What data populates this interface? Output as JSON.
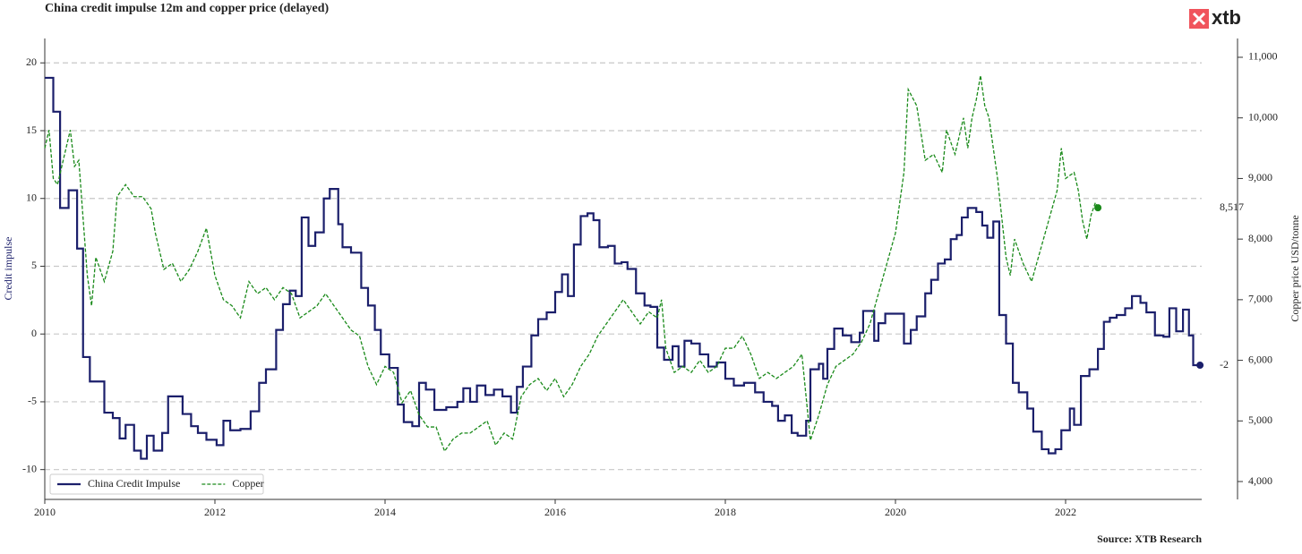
{
  "chart_data": {
    "type": "line",
    "title": "China credit impulse 12m and copper price (delayed)",
    "source": "Source: XTB Research",
    "logo": "xtb",
    "y_label": "Credit impulse",
    "y2_label": "Copper price USD/tonne",
    "xlim": [
      2010,
      2023.6
    ],
    "xticks": [
      2010,
      2012,
      2014,
      2016,
      2018,
      2020,
      2022
    ],
    "ylim": [
      -12.2,
      21.8
    ],
    "yticks": [
      -10,
      -5,
      0,
      5,
      10,
      15,
      20
    ],
    "y2lim": [
      3705,
      11310
    ],
    "y2ticks": [
      {
        "value": 4000,
        "label": "4,000"
      },
      {
        "value": 5000,
        "label": "5,000"
      },
      {
        "value": 6000,
        "label": "6,000"
      },
      {
        "value": 7000,
        "label": "7,000"
      },
      {
        "value": 8000,
        "label": "8,000"
      },
      {
        "value": 9000,
        "label": "9,000"
      },
      {
        "value": 10000,
        "label": "10,000"
      },
      {
        "value": 11000,
        "label": "11,000"
      }
    ],
    "grid": true,
    "legend": "lower left",
    "series": [
      {
        "name": "China Credit Impulse",
        "color": "#1b1f6b",
        "step": true,
        "dashed": false,
        "axis": "y",
        "last_label": "-2",
        "x": [
          2010.0,
          2010.1,
          2010.18,
          2010.28,
          2010.38,
          2010.45,
          2010.53,
          2010.7,
          2010.8,
          2010.88,
          2010.95,
          2011.05,
          2011.13,
          2011.2,
          2011.28,
          2011.38,
          2011.45,
          2011.62,
          2011.72,
          2011.8,
          2011.9,
          2012.02,
          2012.1,
          2012.18,
          2012.3,
          2012.42,
          2012.52,
          2012.6,
          2012.72,
          2012.8,
          2012.88,
          2012.95,
          2013.02,
          2013.1,
          2013.18,
          2013.28,
          2013.35,
          2013.45,
          2013.5,
          2013.6,
          2013.72,
          2013.8,
          2013.88,
          2013.95,
          2014.05,
          2014.15,
          2014.22,
          2014.32,
          2014.4,
          2014.48,
          2014.58,
          2014.72,
          2014.85,
          2014.92,
          2015.0,
          2015.08,
          2015.18,
          2015.28,
          2015.38,
          2015.48,
          2015.55,
          2015.62,
          2015.72,
          2015.8,
          2015.9,
          2016.0,
          2016.08,
          2016.15,
          2016.22,
          2016.3,
          2016.38,
          2016.45,
          2016.52,
          2016.62,
          2016.7,
          2016.78,
          2016.85,
          2016.95,
          2017.05,
          2017.12,
          2017.2,
          2017.28,
          2017.38,
          2017.45,
          2017.52,
          2017.6,
          2017.7,
          2017.8,
          2017.9,
          2018.0,
          2018.1,
          2018.22,
          2018.35,
          2018.45,
          2018.55,
          2018.62,
          2018.7,
          2018.78,
          2018.85,
          2018.95,
          2019.0,
          2019.1,
          2019.15,
          2019.2,
          2019.28,
          2019.38,
          2019.48,
          2019.58,
          2019.62,
          2019.75,
          2019.8,
          2019.88,
          2020.0,
          2020.1,
          2020.18,
          2020.25,
          2020.35,
          2020.42,
          2020.5,
          2020.58,
          2020.65,
          2020.72,
          2020.78,
          2020.85,
          2020.95,
          2021.02,
          2021.08,
          2021.15,
          2021.22,
          2021.3,
          2021.38,
          2021.45,
          2021.55,
          2021.62,
          2021.72,
          2021.8,
          2021.88,
          2021.95,
          2022.05,
          2022.1,
          2022.18,
          2022.28,
          2022.38,
          2022.45,
          2022.52,
          2022.6,
          2022.7,
          2022.78,
          2022.88,
          2022.95,
          2023.05,
          2023.15,
          2023.22,
          2023.3,
          2023.38,
          2023.45,
          2023.5,
          2023.58
        ],
        "values": [
          18.9,
          16.4,
          9.3,
          10.6,
          6.3,
          -1.7,
          -3.5,
          -5.8,
          -6.2,
          -7.7,
          -6.7,
          -8.6,
          -9.2,
          -7.5,
          -8.6,
          -7.3,
          -4.6,
          -5.9,
          -6.8,
          -7.3,
          -7.8,
          -8.2,
          -6.4,
          -7.1,
          -7.0,
          -5.7,
          -3.6,
          -2.6,
          0.3,
          2.2,
          3.2,
          2.8,
          8.6,
          6.5,
          7.5,
          10.0,
          10.7,
          8.1,
          6.4,
          6.0,
          3.4,
          2.1,
          0.3,
          -1.5,
          -2.5,
          -5.2,
          -6.5,
          -6.8,
          -3.6,
          -4.1,
          -5.6,
          -5.4,
          -5.0,
          -4.0,
          -5.0,
          -3.8,
          -4.5,
          -4.1,
          -4.6,
          -5.8,
          -3.9,
          -2.4,
          -0.1,
          1.1,
          1.6,
          3.1,
          4.4,
          2.8,
          6.6,
          8.7,
          8.9,
          8.4,
          6.4,
          6.5,
          5.2,
          5.3,
          4.8,
          3.0,
          2.1,
          2.0,
          -1.0,
          -1.9,
          -0.9,
          -2.4,
          -0.5,
          -0.7,
          -1.5,
          -2.4,
          -2.1,
          -3.3,
          -3.8,
          -3.6,
          -4.3,
          -5.0,
          -5.3,
          -6.4,
          -6.0,
          -7.3,
          -7.5,
          -6.4,
          -2.6,
          -2.2,
          -3.3,
          -1.1,
          0.4,
          -0.1,
          -0.6,
          0.1,
          1.7,
          -0.5,
          0.8,
          1.5,
          1.5,
          -0.7,
          0.3,
          1.3,
          3.0,
          4.0,
          5.2,
          5.5,
          7.0,
          7.3,
          8.6,
          9.3,
          9.0,
          8.0,
          7.1,
          8.3,
          1.4,
          -0.7,
          -3.6,
          -4.3,
          -5.5,
          -7.2,
          -8.5,
          -8.8,
          -8.5,
          -7.1,
          -5.5,
          -6.7,
          -3.1,
          -2.6,
          -1.1,
          0.9,
          1.2,
          1.4,
          1.9,
          2.8,
          2.3,
          1.6,
          -0.1,
          -0.2,
          1.9,
          0.2,
          1.8,
          -0.1,
          -2.3,
          -2.3
        ]
      },
      {
        "name": "Copper",
        "color": "#1a8a1a",
        "step": false,
        "dashed": true,
        "axis": "y2",
        "last_label": "8,517",
        "x": [
          2010.0,
          2010.05,
          2010.1,
          2010.15,
          2010.2,
          2010.3,
          2010.35,
          2010.4,
          2010.5,
          2010.55,
          2010.6,
          2010.7,
          2010.8,
          2010.85,
          2010.95,
          2011.05,
          2011.15,
          2011.25,
          2011.3,
          2011.4,
          2011.5,
          2011.6,
          2011.7,
          2011.8,
          2011.9,
          2012.0,
          2012.1,
          2012.2,
          2012.3,
          2012.4,
          2012.5,
          2012.6,
          2012.7,
          2012.8,
          2012.9,
          2013.0,
          2013.1,
          2013.2,
          2013.3,
          2013.4,
          2013.5,
          2013.6,
          2013.7,
          2013.8,
          2013.9,
          2014.0,
          2014.1,
          2014.2,
          2014.3,
          2014.4,
          2014.5,
          2014.6,
          2014.7,
          2014.8,
          2014.9,
          2015.0,
          2015.1,
          2015.2,
          2015.3,
          2015.4,
          2015.5,
          2015.6,
          2015.7,
          2015.8,
          2015.9,
          2016.0,
          2016.1,
          2016.2,
          2016.3,
          2016.4,
          2016.5,
          2016.6,
          2016.7,
          2016.8,
          2016.9,
          2017.0,
          2017.1,
          2017.2,
          2017.25,
          2017.3,
          2017.4,
          2017.5,
          2017.6,
          2017.7,
          2017.8,
          2017.9,
          2018.0,
          2018.1,
          2018.2,
          2018.3,
          2018.4,
          2018.5,
          2018.6,
          2018.7,
          2018.8,
          2018.9,
          2019.0,
          2019.1,
          2019.2,
          2019.3,
          2019.4,
          2019.5,
          2019.6,
          2019.7,
          2019.8,
          2019.9,
          2020.0,
          2020.05,
          2020.1,
          2020.15,
          2020.25,
          2020.35,
          2020.45,
          2020.55,
          2020.6,
          2020.7,
          2020.8,
          2020.85,
          2020.9,
          2020.95,
          2021.0,
          2021.05,
          2021.1,
          2021.2,
          2021.3,
          2021.35,
          2021.4,
          2021.5,
          2021.6,
          2021.7,
          2021.8,
          2021.9,
          2021.95,
          2022.0,
          2022.1,
          2022.15,
          2022.2,
          2022.25,
          2022.3,
          2022.35,
          2022.38
        ],
        "values": [
          9500,
          9800,
          9000,
          8900,
          9200,
          9800,
          9200,
          9300,
          7400,
          6900,
          7700,
          7300,
          7800,
          8700,
          8900,
          8700,
          8700,
          8500,
          8100,
          7500,
          7600,
          7300,
          7500,
          7800,
          8180,
          7400,
          7000,
          6900,
          6700,
          7300,
          7100,
          7200,
          7000,
          7200,
          7100,
          6700,
          6800,
          6900,
          7100,
          6900,
          6700,
          6500,
          6400,
          5900,
          5600,
          5900,
          5800,
          5300,
          5500,
          5100,
          4900,
          4900,
          4500,
          4700,
          4800,
          4800,
          4900,
          5000,
          4600,
          4800,
          4700,
          5400,
          5600,
          5700,
          5500,
          5700,
          5400,
          5600,
          5900,
          6100,
          6400,
          6600,
          6800,
          7000,
          6800,
          6600,
          6800,
          6700,
          7000,
          6200,
          5800,
          5900,
          5800,
          6000,
          5800,
          5900,
          6200,
          6200,
          6400,
          6100,
          5700,
          5800,
          5700,
          5800,
          5900,
          6100,
          4680,
          5100,
          5600,
          5900,
          6000,
          6100,
          6300,
          6600,
          7100,
          7600,
          8100,
          8600,
          9100,
          10470,
          10200,
          9300,
          9400,
          9100,
          9800,
          9400,
          10000,
          9500,
          10000,
          10300,
          10700,
          10200,
          10000,
          9000,
          7700,
          7400,
          8000,
          7600,
          7300,
          7800,
          8300,
          8800,
          9500,
          9000,
          9100,
          8800,
          8300,
          8000,
          8400,
          8600,
          8517
        ]
      }
    ]
  }
}
